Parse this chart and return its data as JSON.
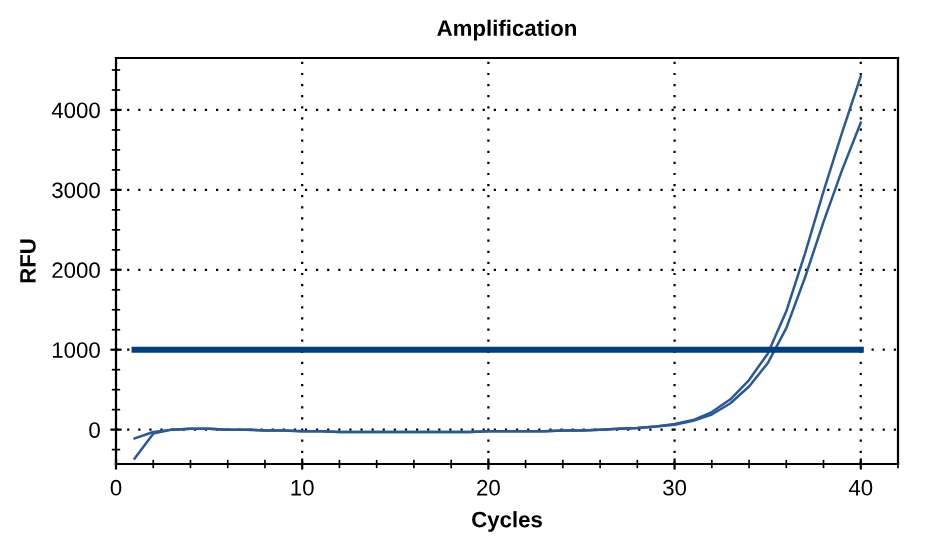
{
  "chart_data": {
    "type": "line",
    "title": "Amplification",
    "xlabel": "Cycles",
    "ylabel": "RFU",
    "x": [
      1,
      2,
      3,
      4,
      5,
      6,
      7,
      8,
      9,
      10,
      11,
      12,
      13,
      14,
      15,
      16,
      17,
      18,
      19,
      20,
      21,
      22,
      23,
      24,
      25,
      26,
      27,
      28,
      29,
      30,
      31,
      32,
      33,
      34,
      35,
      36,
      37,
      38,
      39,
      40
    ],
    "series": [
      {
        "color": "#2a5a96",
        "values": [
          -110,
          -30,
          0,
          10,
          10,
          0,
          0,
          -10,
          -10,
          -20,
          -20,
          -30,
          -30,
          -30,
          -30,
          -30,
          -30,
          -30,
          -30,
          -20,
          -20,
          -20,
          -20,
          -10,
          -10,
          0,
          10,
          20,
          40,
          70,
          120,
          220,
          380,
          620,
          950,
          1480,
          2200,
          2980,
          3720,
          4420
        ]
      },
      {
        "color": "#2a5a96",
        "values": [
          -360,
          -50,
          0,
          10,
          10,
          0,
          0,
          -10,
          -10,
          -20,
          -20,
          -30,
          -30,
          -30,
          -30,
          -30,
          -30,
          -30,
          -30,
          -20,
          -20,
          -20,
          -20,
          -10,
          -10,
          0,
          10,
          20,
          40,
          60,
          110,
          190,
          330,
          540,
          830,
          1270,
          1900,
          2600,
          3250,
          3840
        ]
      },
      {
        "color": "#003f7f",
        "x": [
          1,
          40
        ],
        "values": [
          1000,
          1000
        ]
      }
    ],
    "xlim": [
      0,
      42
    ],
    "ylim": [
      -430,
      4650
    ],
    "xticks": [
      0,
      10,
      20,
      30,
      40
    ],
    "yticks": [
      0,
      1000,
      2000,
      3000,
      4000
    ],
    "grid": true,
    "line_style": "solid",
    "marker": "none"
  }
}
